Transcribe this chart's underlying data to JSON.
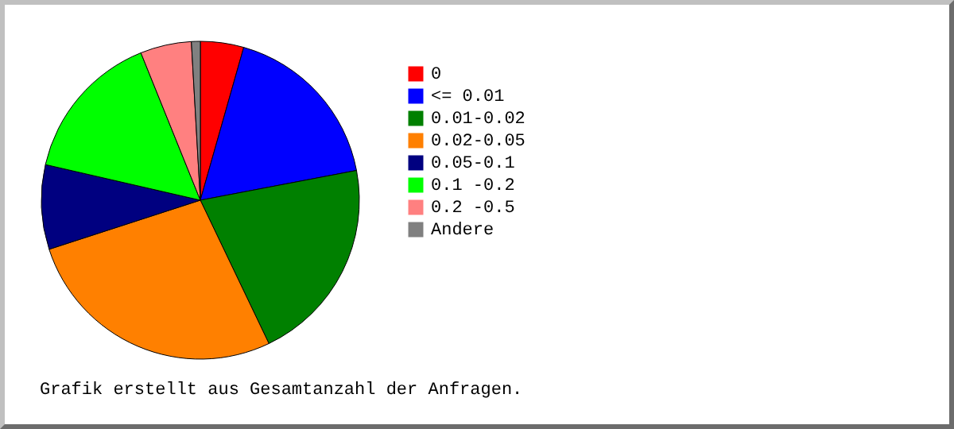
{
  "chart_data": {
    "type": "pie",
    "categories": [
      "0",
      "<= 0.01",
      "0.01-0.02",
      "0.02-0.05",
      "0.05-0.1",
      "0.1 -0.2",
      "0.2 -0.5",
      "Andere"
    ],
    "values": [
      4.4,
      17.6,
      20.9,
      27.1,
      8.6,
      15.3,
      5.2,
      0.9
    ],
    "colors": [
      "#ff0000",
      "#0000ff",
      "#008000",
      "#ff8000",
      "#000080",
      "#00ff00",
      "#ff8080",
      "#808080"
    ],
    "legend": "right",
    "annotations": [
      "Grafik erstellt aus Gesamtanzahl der Anfragen."
    ]
  }
}
